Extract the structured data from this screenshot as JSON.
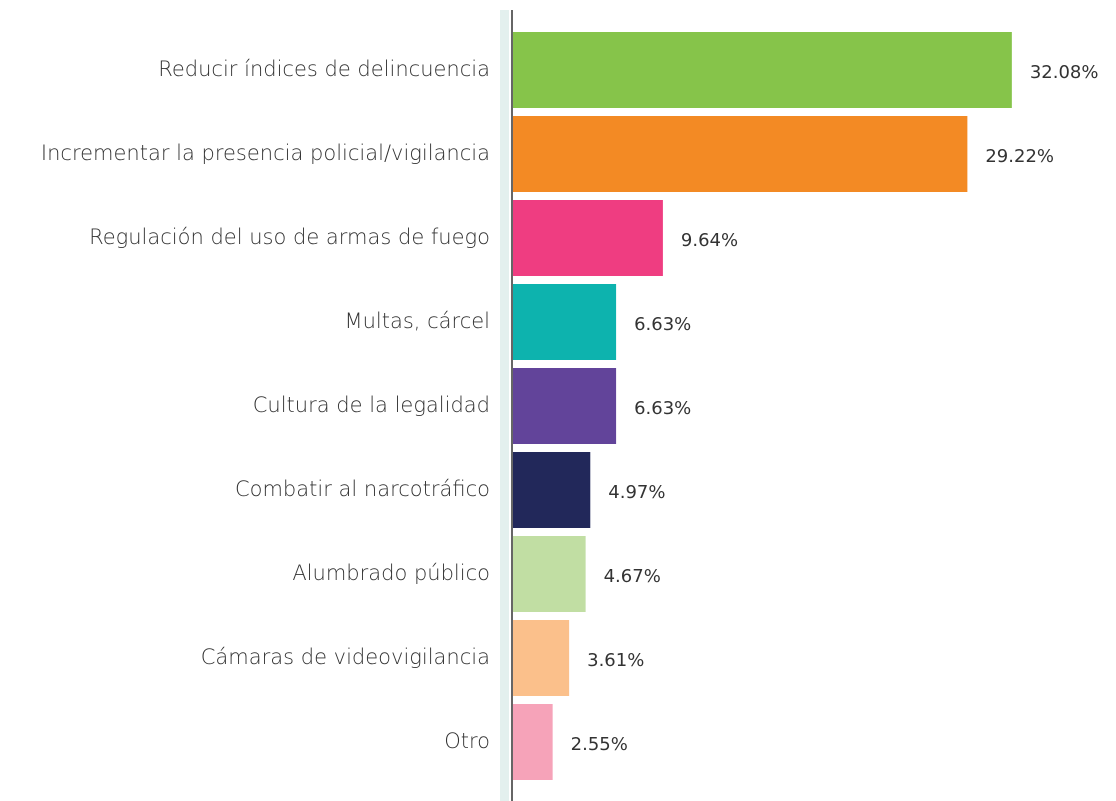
{
  "chart_data": {
    "type": "hbar",
    "categories": [
      "Reducir índices de delincuencia",
      "Incrementar la presencia policial/vigilancia",
      "Regulación del uso de armas de fuego",
      "Multas, cárcel",
      "Cultura de la legalidad",
      "Combatir al narcotráfico",
      "Alumbrado público",
      "Cámaras de videovigilancia",
      "Otro"
    ],
    "values": [
      32.08,
      29.22,
      9.64,
      6.63,
      6.63,
      4.97,
      4.67,
      3.61,
      2.55
    ],
    "value_labels": [
      "32.08%",
      "29.22%",
      "9.64%",
      "6.63%",
      "6.63%",
      "4.97%",
      "4.67%",
      "3.61%",
      "2.55%"
    ],
    "colors": [
      "#86c44a",
      "#f38a24",
      "#ef3d81",
      "#0db3ae",
      "#62449a",
      "#22285a",
      "#c1dea3",
      "#fbc08b",
      "#f6a3b9"
    ]
  }
}
